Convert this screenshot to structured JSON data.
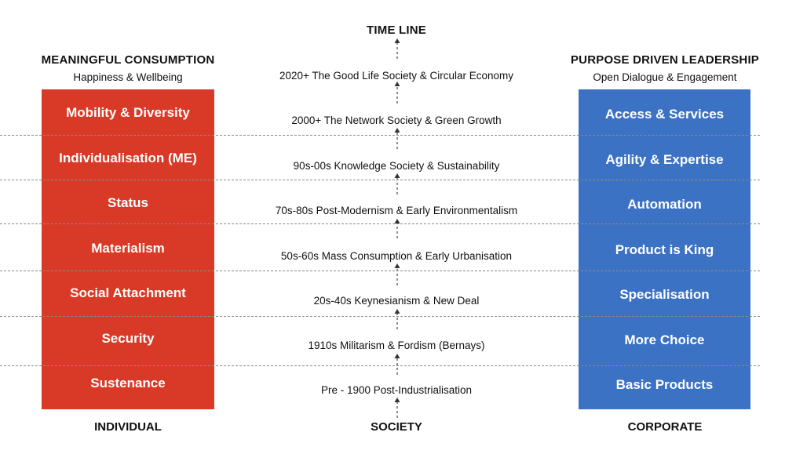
{
  "timeline_title": "TIME LINE",
  "left": {
    "title": "MEANINGFUL CONSUMPTION",
    "subtitle": "Happiness & Wellbeing",
    "color": "#d93a27",
    "items": [
      "Mobility & Diversity",
      "Individualisation (ME)",
      "Status",
      "Materialism",
      "Social Attachment",
      "Security",
      "Sustenance"
    ],
    "footer": "INDIVIDUAL"
  },
  "center": {
    "eras": [
      "2020+ The Good Life Society & Circular Economy",
      "2000+ The Network Society & Green Growth",
      "90s-00s Knowledge Society & Sustainability",
      "70s-80s Post-Modernism & Early Environmentalism",
      "50s-60s Mass Consumption & Early Urbanisation",
      "20s-40s Keynesianism & New Deal",
      "1910s Militarism & Fordism (Bernays)",
      "Pre - 1900 Post-Industrialisation"
    ],
    "footer": "SOCIETY"
  },
  "right": {
    "title": "PURPOSE DRIVEN LEADERSHIP",
    "subtitle": "Open Dialogue & Engagement",
    "color": "#3c72c3",
    "items": [
      "Access & Services",
      "Agility & Expertise",
      "Automation",
      "Product is King",
      "Specialisation",
      "More Choice",
      "Basic Products"
    ],
    "footer": "CORPORATE"
  }
}
